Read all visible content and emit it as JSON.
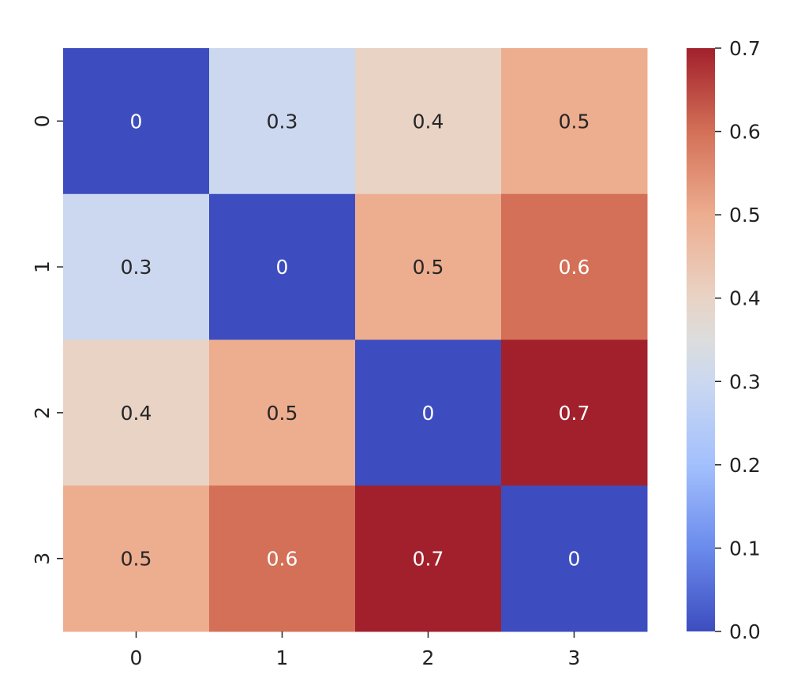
{
  "chart_data": {
    "type": "heatmap",
    "title": "",
    "xlabel": "",
    "ylabel": "",
    "x_categories": [
      "0",
      "1",
      "2",
      "3"
    ],
    "y_categories": [
      "0",
      "1",
      "2",
      "3"
    ],
    "values": [
      [
        0,
        0.3,
        0.4,
        0.5
      ],
      [
        0.3,
        0,
        0.5,
        0.6
      ],
      [
        0.4,
        0.5,
        0,
        0.7
      ],
      [
        0.5,
        0.6,
        0.7,
        0
      ]
    ],
    "annotations": [
      [
        "0",
        "0.3",
        "0.4",
        "0.5"
      ],
      [
        "0.3",
        "0",
        "0.5",
        "0.6"
      ],
      [
        "0.4",
        "0.5",
        "0",
        "0.7"
      ],
      [
        "0.5",
        "0.6",
        "0.7",
        "0"
      ]
    ],
    "colormap": "coolwarm",
    "colorbar": {
      "range": [
        0.0,
        0.7
      ],
      "ticks": [
        "0.0",
        "0.1",
        "0.2",
        "0.3",
        "0.4",
        "0.5",
        "0.6",
        "0.7"
      ],
      "placement": "right"
    },
    "colors": {
      "min": "#3b4cc0",
      "max": "#a2202c",
      "annotation_dark": "#262626",
      "annotation_light": "#ffffff"
    }
  }
}
